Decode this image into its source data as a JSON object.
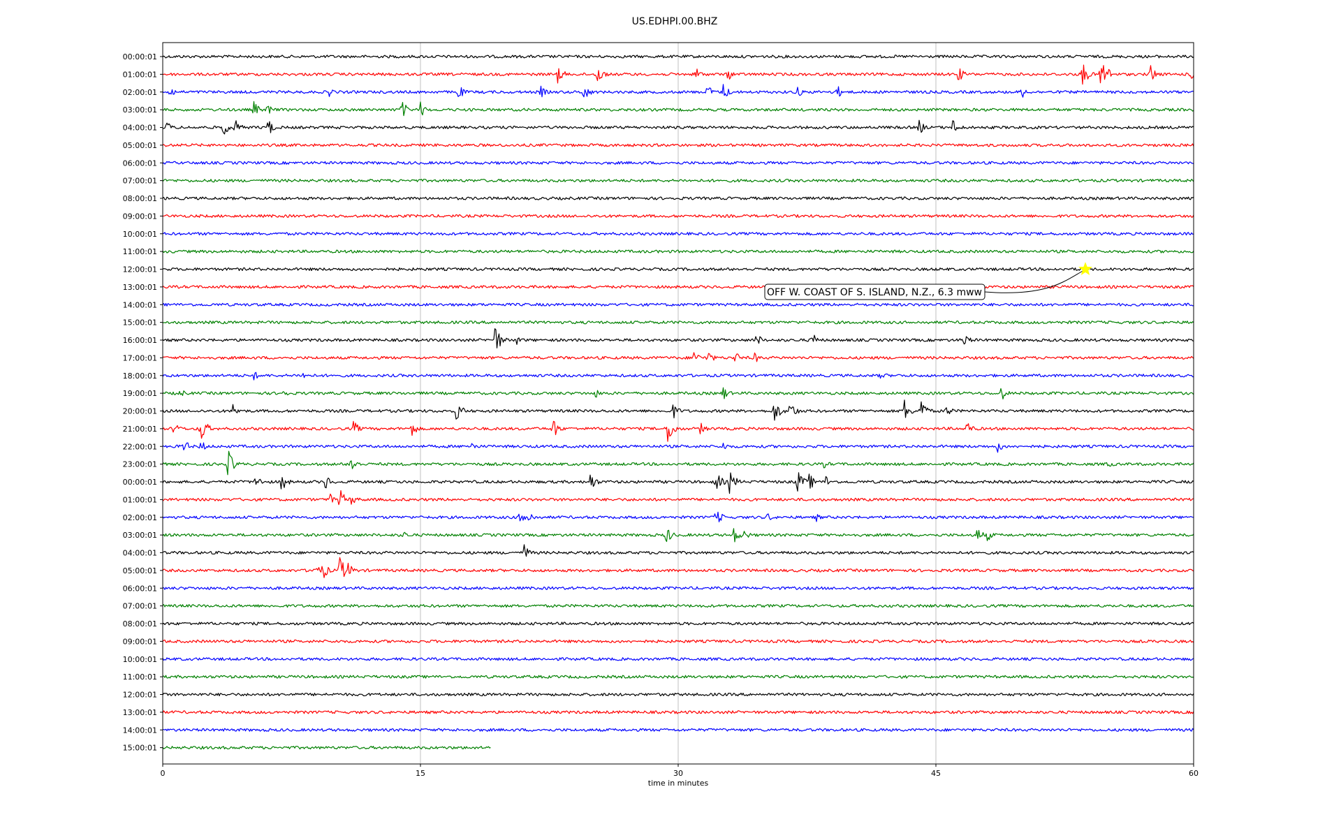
{
  "chart_data": {
    "type": "line",
    "title": "US.EDHPI.00.BHZ",
    "xlabel": "time in minutes",
    "ylabel": "",
    "xlim": [
      0,
      60
    ],
    "x_ticks": [
      0,
      15,
      30,
      45,
      60
    ],
    "grid_vertical": true,
    "trace_colors": [
      "#000000",
      "#ff0000",
      "#0000ff",
      "#008000"
    ],
    "rows": [
      {
        "label": "00:00:01",
        "events": []
      },
      {
        "label": "01:00:01",
        "events": [
          {
            "t": 23.0,
            "a": 0.6
          },
          {
            "t": 25.3,
            "a": 0.7
          },
          {
            "t": 31.0,
            "a": 0.5
          },
          {
            "t": 32.9,
            "a": 0.4
          },
          {
            "t": 46.3,
            "a": 0.5
          },
          {
            "t": 53.5,
            "a": 0.9
          },
          {
            "t": 54.6,
            "a": 1.6
          },
          {
            "t": 57.5,
            "a": 0.6
          },
          {
            "t": 59.8,
            "a": 0.4
          }
        ]
      },
      {
        "label": "02:00:01",
        "events": [
          {
            "t": 0.4,
            "a": 0.4
          },
          {
            "t": 9.7,
            "a": 0.3
          },
          {
            "t": 17.2,
            "a": 0.5
          },
          {
            "t": 22.0,
            "a": 0.4
          },
          {
            "t": 24.5,
            "a": 0.6
          },
          {
            "t": 31.7,
            "a": 0.5
          },
          {
            "t": 32.6,
            "a": 0.6
          },
          {
            "t": 36.9,
            "a": 0.4
          },
          {
            "t": 39.2,
            "a": 0.5
          },
          {
            "t": 50.0,
            "a": 0.4
          }
        ]
      },
      {
        "label": "03:00:01",
        "events": [
          {
            "t": 5.3,
            "a": 0.5
          },
          {
            "t": 6.1,
            "a": 0.4
          },
          {
            "t": 13.9,
            "a": 0.6
          },
          {
            "t": 15.0,
            "a": 0.5
          }
        ]
      },
      {
        "label": "04:00:01",
        "events": [
          {
            "t": 0.2,
            "a": 0.4
          },
          {
            "t": 3.5,
            "a": 0.6
          },
          {
            "t": 4.1,
            "a": 0.7
          },
          {
            "t": 6.1,
            "a": 0.6
          },
          {
            "t": 44.0,
            "a": 0.5
          },
          {
            "t": 46.0,
            "a": 0.6
          }
        ]
      },
      {
        "label": "05:00:01",
        "events": []
      },
      {
        "label": "06:00:01",
        "events": []
      },
      {
        "label": "07:00:01",
        "events": []
      },
      {
        "label": "08:00:01",
        "events": []
      },
      {
        "label": "09:00:01",
        "events": []
      },
      {
        "label": "10:00:01",
        "events": []
      },
      {
        "label": "11:00:01",
        "events": []
      },
      {
        "label": "12:00:01",
        "events": []
      },
      {
        "label": "13:00:01",
        "events": []
      },
      {
        "label": "14:00:01",
        "events": []
      },
      {
        "label": "15:00:01",
        "events": []
      },
      {
        "label": "16:00:01",
        "events": [
          {
            "t": 19.3,
            "a": 1.1
          },
          {
            "t": 20.5,
            "a": 0.4
          },
          {
            "t": 34.5,
            "a": 0.5
          },
          {
            "t": 37.8,
            "a": 0.5
          },
          {
            "t": 46.6,
            "a": 0.5
          }
        ]
      },
      {
        "label": "17:00:01",
        "events": [
          {
            "t": 30.9,
            "a": 0.5
          },
          {
            "t": 31.7,
            "a": 0.5
          },
          {
            "t": 33.3,
            "a": 0.4
          },
          {
            "t": 34.4,
            "a": 0.4
          }
        ]
      },
      {
        "label": "18:00:01",
        "events": [
          {
            "t": 5.3,
            "a": 0.3
          },
          {
            "t": 8.1,
            "a": 0.3
          },
          {
            "t": 41.8,
            "a": 0.3
          }
        ]
      },
      {
        "label": "19:00:01",
        "events": [
          {
            "t": 1.0,
            "a": 0.3
          },
          {
            "t": 7.0,
            "a": 0.3
          },
          {
            "t": 25.2,
            "a": 0.3
          },
          {
            "t": 32.6,
            "a": 0.5
          },
          {
            "t": 48.8,
            "a": 0.5
          }
        ]
      },
      {
        "label": "20:00:01",
        "events": [
          {
            "t": 4.1,
            "a": 0.5
          },
          {
            "t": 17.1,
            "a": 0.7
          },
          {
            "t": 29.7,
            "a": 0.5
          },
          {
            "t": 35.6,
            "a": 0.8
          },
          {
            "t": 36.5,
            "a": 0.7
          },
          {
            "t": 43.1,
            "a": 0.9
          },
          {
            "t": 44.1,
            "a": 0.9
          },
          {
            "t": 45.6,
            "a": 0.4
          }
        ]
      },
      {
        "label": "21:00:01",
        "events": [
          {
            "t": 0.6,
            "a": 0.5
          },
          {
            "t": 2.2,
            "a": 1.0
          },
          {
            "t": 11.1,
            "a": 0.5
          },
          {
            "t": 14.5,
            "a": 0.5
          },
          {
            "t": 22.7,
            "a": 0.7
          },
          {
            "t": 29.4,
            "a": 1.0
          },
          {
            "t": 31.3,
            "a": 0.4
          },
          {
            "t": 46.8,
            "a": 0.5
          }
        ]
      },
      {
        "label": "22:00:01",
        "events": [
          {
            "t": 1.2,
            "a": 0.5
          },
          {
            "t": 2.2,
            "a": 0.4
          },
          {
            "t": 18.0,
            "a": 0.3
          },
          {
            "t": 32.6,
            "a": 0.3
          },
          {
            "t": 48.6,
            "a": 0.4
          }
        ]
      },
      {
        "label": "23:00:01",
        "events": [
          {
            "t": 3.8,
            "a": 0.9
          },
          {
            "t": 10.9,
            "a": 0.7
          },
          {
            "t": 38.5,
            "a": 0.3
          },
          {
            "t": 55.0,
            "a": 0.3
          }
        ]
      },
      {
        "label": "00:00:01",
        "events": [
          {
            "t": 5.4,
            "a": 0.5
          },
          {
            "t": 6.9,
            "a": 0.6
          },
          {
            "t": 9.4,
            "a": 0.6
          },
          {
            "t": 24.8,
            "a": 0.8
          },
          {
            "t": 32.2,
            "a": 0.7
          },
          {
            "t": 33.0,
            "a": 0.8
          },
          {
            "t": 36.9,
            "a": 0.9
          },
          {
            "t": 37.6,
            "a": 0.6
          },
          {
            "t": 38.6,
            "a": 0.4
          }
        ]
      },
      {
        "label": "01:00:01",
        "events": [
          {
            "t": 9.7,
            "a": 0.4
          },
          {
            "t": 10.3,
            "a": 0.7
          },
          {
            "t": 11.0,
            "a": 0.4
          }
        ]
      },
      {
        "label": "02:00:01",
        "events": [
          {
            "t": 20.8,
            "a": 0.6
          },
          {
            "t": 21.3,
            "a": 0.4
          },
          {
            "t": 32.2,
            "a": 0.6
          },
          {
            "t": 35.2,
            "a": 0.3
          },
          {
            "t": 38.0,
            "a": 0.3
          }
        ]
      },
      {
        "label": "03:00:01",
        "events": [
          {
            "t": 14.0,
            "a": 0.3
          },
          {
            "t": 29.3,
            "a": 0.6
          },
          {
            "t": 33.2,
            "a": 0.6
          },
          {
            "t": 33.8,
            "a": 0.4
          },
          {
            "t": 47.4,
            "a": 0.5
          },
          {
            "t": 48.0,
            "a": 0.4
          }
        ]
      },
      {
        "label": "04:00:01",
        "events": [
          {
            "t": 21.0,
            "a": 0.6
          }
        ]
      },
      {
        "label": "05:00:01",
        "events": [
          {
            "t": 8.8,
            "a": 0.5
          },
          {
            "t": 9.3,
            "a": 0.6
          },
          {
            "t": 10.3,
            "a": 0.9
          },
          {
            "t": 10.8,
            "a": 0.5
          }
        ]
      },
      {
        "label": "06:00:01",
        "events": []
      },
      {
        "label": "07:00:01",
        "events": []
      },
      {
        "label": "08:00:01",
        "events": []
      },
      {
        "label": "09:00:01",
        "events": []
      },
      {
        "label": "10:00:01",
        "events": []
      },
      {
        "label": "11:00:01",
        "events": []
      },
      {
        "label": "12:00:01",
        "events": []
      },
      {
        "label": "13:00:01",
        "events": []
      },
      {
        "label": "14:00:01",
        "events": []
      },
      {
        "label": "15:00:01",
        "events": [],
        "end_minute": 19.1
      }
    ],
    "event_marker": {
      "row": 12,
      "t": 53.7,
      "color": "#ffff00"
    },
    "annotation": "OFF W. COAST OF S. ISLAND, N.Z., 6.3 mww"
  }
}
